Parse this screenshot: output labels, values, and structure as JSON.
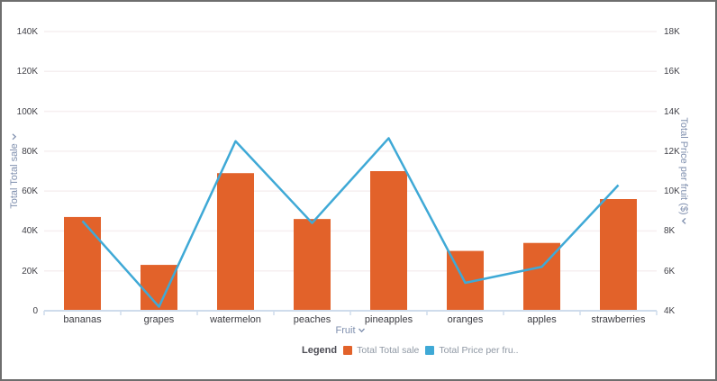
{
  "window": {
    "background": "#ffffff",
    "border_color": "#6e6e6e"
  },
  "chart_data": {
    "type": "combo",
    "categories": [
      "bananas",
      "grapes",
      "watermelon",
      "peaches",
      "pineapples",
      "oranges",
      "apples",
      "strawberries"
    ],
    "series": [
      {
        "name": "Total Total sale",
        "type": "bar",
        "axis": "left",
        "color": "#e2622a",
        "values": [
          47000,
          23000,
          69000,
          46000,
          70000,
          30000,
          34000,
          56000
        ]
      },
      {
        "name": "Total Price per fruit ($)",
        "type": "line",
        "axis": "right",
        "color": "#3fa9d6",
        "values": [
          8500,
          4200,
          12500,
          8400,
          12650,
          5400,
          6200,
          10300
        ]
      }
    ],
    "left_axis": {
      "title": "Total Total sale",
      "min": 0,
      "max": 140000,
      "tick_labels": [
        "0",
        "20K",
        "40K",
        "60K",
        "80K",
        "100K",
        "120K",
        "140K"
      ]
    },
    "right_axis": {
      "title": "Total Price per fruit ($)",
      "min": 4000,
      "max": 18000,
      "tick_labels": [
        "4K",
        "6K",
        "8K",
        "10K",
        "12K",
        "14K",
        "16K",
        "18K"
      ]
    },
    "x_axis": {
      "title": "Fruit"
    },
    "legend": {
      "label": "Legend",
      "items": [
        "Total Total sale",
        "Total Price per fru.."
      ]
    },
    "grid": "horizontal",
    "colors": {
      "gridline": "#f6eff0",
      "axis_line": "#cfdcec",
      "tick_text": "#3f3f46",
      "axis_title_text": "#7f8fae"
    }
  }
}
